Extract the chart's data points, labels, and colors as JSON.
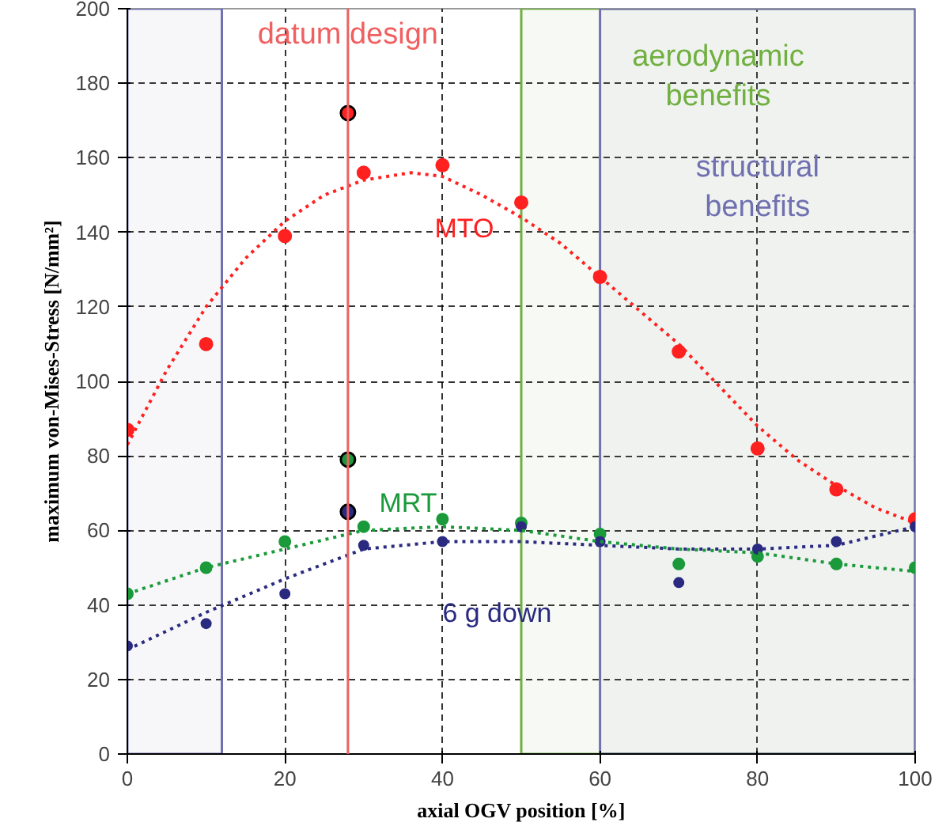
{
  "chart_data": {
    "type": "scatter",
    "xlabel": "axial OGV position [%]",
    "ylabel": "maximum von-Mises-Stress [N/mm²]",
    "xlim": [
      0,
      100
    ],
    "ylim": [
      0,
      200
    ],
    "xticks": [
      0,
      20,
      40,
      60,
      80,
      100
    ],
    "yticks": [
      0,
      20,
      40,
      60,
      80,
      100,
      120,
      140,
      160,
      180,
      200
    ],
    "grid": true,
    "marker": "circle",
    "series": [
      {
        "color": "#ff2020",
        "x": [
          0,
          10,
          20,
          30,
          40,
          50,
          60,
          70,
          80,
          90,
          100
        ],
        "values": [
          87,
          110,
          139,
          156,
          158,
          148,
          128,
          108,
          82,
          71,
          63
        ]
      },
      {
        "color": "#1a9a3a",
        "x": [
          0,
          10,
          20,
          30,
          40,
          50,
          60,
          70,
          80,
          90,
          100
        ],
        "values": [
          43,
          50,
          57,
          61,
          63,
          62,
          59,
          51,
          53,
          51,
          50
        ]
      },
      {
        "color": "#2a2a80",
        "x": [
          0,
          10,
          20,
          30,
          40,
          50,
          60,
          70,
          80,
          90,
          100
        ],
        "values": [
          29,
          35,
          43,
          56,
          57,
          61,
          57,
          46,
          55,
          57,
          61
        ]
      },
      {
        "type": "line",
        "line_style": "dotted",
        "marker": "none",
        "color": "#ff2020",
        "x": [
          0,
          5,
          10,
          15,
          20,
          25,
          30,
          36,
          40,
          45,
          50,
          55,
          60,
          65,
          70,
          75,
          80,
          85,
          90,
          95,
          100
        ],
        "values": [
          83,
          103,
          120,
          133,
          143,
          150,
          154,
          156,
          155,
          150,
          144,
          137,
          128,
          119,
          110,
          99,
          88,
          79,
          72,
          66,
          62
        ]
      },
      {
        "type": "line",
        "line_style": "dotted",
        "marker": "none",
        "color": "#1a9a3a",
        "x": [
          0,
          10,
          20,
          30,
          40,
          50,
          60,
          70,
          80,
          90,
          100
        ],
        "values": [
          43,
          50,
          55,
          60,
          61,
          60,
          57,
          55,
          54,
          51,
          49
        ]
      },
      {
        "type": "line",
        "line_style": "dotted",
        "marker": "none",
        "color": "#2a2a80",
        "x": [
          0,
          10,
          20,
          30,
          40,
          50,
          60,
          70,
          80,
          90,
          100
        ],
        "values": [
          28,
          38,
          47,
          55,
          57,
          57,
          56,
          55,
          55,
          56,
          61
        ]
      },
      {
        "type": "scatter",
        "x": [
          28,
          28,
          28
        ],
        "values": [
          172,
          79,
          65
        ],
        "colors": [
          "#ff2020",
          "#1a9a3a",
          "#2a2a80"
        ]
      }
    ],
    "ref_lines": [
      {
        "axis": "x",
        "value": 28,
        "label": "datum design",
        "color": "#f06060"
      }
    ],
    "bands": [
      {
        "axis": "x",
        "from": 0,
        "to": 12,
        "label": null,
        "color": "#7070b0"
      },
      {
        "axis": "x",
        "from": 50,
        "to": 100,
        "label": "aerodynamic benefits",
        "color": "#70b040"
      },
      {
        "axis": "x",
        "from": 60,
        "to": 100,
        "label": "structural benefits",
        "color": "#7070b0"
      }
    ],
    "annotations": [
      "MTO",
      "MRT",
      "6 g down"
    ]
  }
}
